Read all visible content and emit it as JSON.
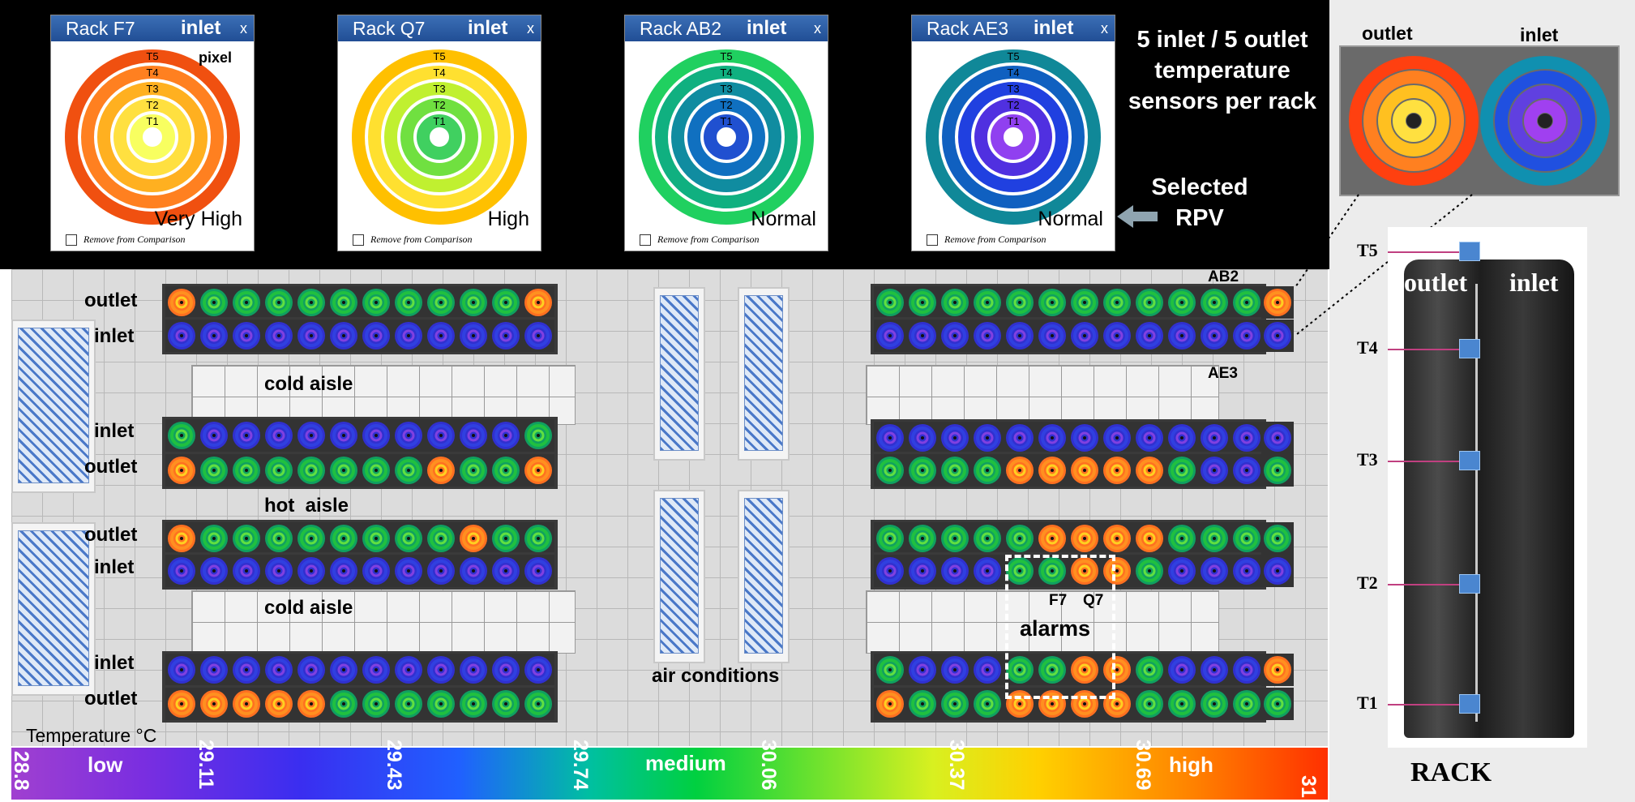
{
  "windows": [
    {
      "rack": "Rack F7",
      "inlet_label": "inlet",
      "close": "x",
      "pixel_label": "pixel",
      "level": "Very High",
      "remove": "Remove from Comparison",
      "palette": [
        "#f05010",
        "#ff8020",
        "#ffb020",
        "#ffe040",
        "#f8ff60"
      ],
      "sensors": [
        "T5",
        "T4",
        "T3",
        "T2",
        "T1"
      ]
    },
    {
      "rack": "Rack Q7",
      "inlet_label": "inlet",
      "close": "x",
      "level": "High",
      "remove": "Remove from Comparison",
      "palette": [
        "#ffc000",
        "#ffe030",
        "#c0f030",
        "#70e040",
        "#40d060"
      ],
      "sensors": [
        "T5",
        "T4",
        "T3",
        "T2",
        "T1"
      ]
    },
    {
      "rack": "Rack AB2",
      "inlet_label": "inlet",
      "close": "x",
      "level": "Normal",
      "remove": "Remove from Comparison",
      "palette": [
        "#20d060",
        "#10b080",
        "#108ca0",
        "#1070c0",
        "#2050d0"
      ],
      "sensors": [
        "T5",
        "T4",
        "T3",
        "T2",
        "T1"
      ]
    },
    {
      "rack": "Rack AE3",
      "inlet_label": "inlet",
      "close": "x",
      "level": "Normal",
      "remove": "Remove from Comparison",
      "palette": [
        "#108898",
        "#1060c0",
        "#2040e0",
        "#5030e0",
        "#9040f0"
      ],
      "sensors": [
        "T5",
        "T4",
        "T3",
        "T2",
        "T1"
      ]
    }
  ],
  "annotations": {
    "sensors_title": "5 inlet / 5 outlet temperature sensors per rack",
    "selected_rpv": "Selected RPV",
    "outlet": "outlet",
    "inlet": "inlet",
    "sensors_word": "sensors",
    "sensors_outlet": "outlet",
    "sensors_inlet": "inlet",
    "rack_caption": "RACK",
    "rack_sensors": [
      "T5",
      "T4",
      "T3",
      "T2",
      "T1"
    ]
  },
  "floor": {
    "row_labels": [
      "outlet",
      "inlet",
      "inlet",
      "outlet",
      "outlet",
      "inlet",
      "inlet",
      "outlet"
    ],
    "aisles": [
      "cold aisle",
      "hot  aisle",
      "cold aisle"
    ],
    "air_conditions": "air conditions",
    "rack_tags": [
      "AB2",
      "AE3",
      "F7",
      "Q7"
    ],
    "alarms": "alarms",
    "temperature_label": "Temperature °C"
  },
  "legend": {
    "words": [
      "low",
      "medium",
      "high"
    ],
    "ticks": [
      "28.8",
      "29.11",
      "29.43",
      "29.74",
      "30.06",
      "30.37",
      "30.69",
      "31"
    ]
  },
  "colors": {
    "hot": "#ff7020",
    "warm": "#ffd020",
    "cool": "#20c040",
    "cold": "#3030d0",
    "purple": "#8040e0"
  }
}
